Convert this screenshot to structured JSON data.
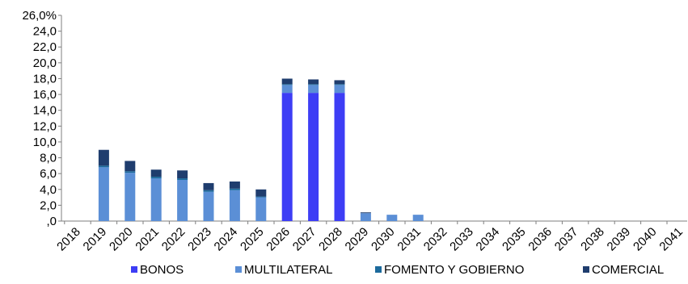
{
  "chart_data": {
    "type": "bar",
    "stacked": true,
    "categories": [
      "2018",
      "2019",
      "2020",
      "2021",
      "2022",
      "2023",
      "2024",
      "2025",
      "2026",
      "2027",
      "2028",
      "2029",
      "2030",
      "2031",
      "2032",
      "2033",
      "2034",
      "2035",
      "2036",
      "2037",
      "2038",
      "2039",
      "2040",
      "2041"
    ],
    "series": [
      {
        "name": "BONOS",
        "color": "#3d3df5",
        "values": [
          0,
          0,
          0,
          0,
          0,
          0,
          0,
          0,
          16.2,
          16.2,
          16.2,
          0,
          0,
          0,
          0,
          0,
          0,
          0,
          0,
          0,
          0,
          0,
          0,
          0
        ]
      },
      {
        "name": "MULTILATERAL",
        "color": "#5b8fd6",
        "values": [
          0,
          6.8,
          6.1,
          5.4,
          5.2,
          3.7,
          3.9,
          3.0,
          1.0,
          1.0,
          1.0,
          1.0,
          0.8,
          0.8,
          0,
          0,
          0,
          0,
          0,
          0,
          0,
          0,
          0,
          0
        ]
      },
      {
        "name": "FOMENTO Y GOBIERNO",
        "color": "#1c6a9c",
        "values": [
          0,
          0.2,
          0.2,
          0.2,
          0.2,
          0.2,
          0.2,
          0.1,
          0.1,
          0.1,
          0.1,
          0,
          0,
          0,
          0,
          0,
          0,
          0,
          0,
          0,
          0,
          0,
          0,
          0
        ]
      },
      {
        "name": "COMERCIAL",
        "color": "#1f3d6e",
        "values": [
          0,
          2.0,
          1.3,
          0.9,
          1.0,
          0.9,
          0.9,
          0.9,
          0.7,
          0.6,
          0.5,
          0.1,
          0,
          0,
          0,
          0,
          0,
          0,
          0,
          0,
          0,
          0,
          0,
          0
        ]
      }
    ],
    "y_ticks": [
      ",0",
      "2,0",
      "4,0",
      "6,0",
      "8,0",
      "10,0",
      "12,0",
      "14,0",
      "16,0",
      "18,0",
      "20,0",
      "22,0",
      "24,0",
      "26,0%"
    ],
    "ylim": [
      0,
      26
    ],
    "grid": false,
    "legend_position": "bottom"
  }
}
